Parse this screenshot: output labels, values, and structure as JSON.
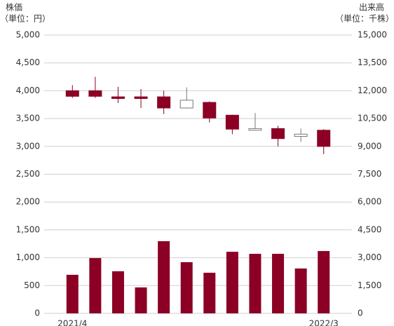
{
  "chart_data": {
    "type": "candlestick",
    "y_label": [
      "株価",
      "（単位：円）"
    ],
    "y2_label": [
      "出来高",
      "（単位：千株）"
    ],
    "categories": [
      "2021/4",
      null,
      null,
      null,
      null,
      null,
      null,
      null,
      null,
      null,
      null,
      "2022/3"
    ],
    "ohlc": {
      "color": "#8b0024",
      "up_color": "#ffffff",
      "open": [
        4000,
        4000,
        3890,
        3890,
        3890,
        3690,
        3790,
        3560,
        3290,
        3320,
        3180,
        3290
      ],
      "high": [
        4100,
        4250,
        4070,
        4030,
        4000,
        4060,
        3810,
        3570,
        3600,
        3370,
        3320,
        3310
      ],
      "low": [
        3870,
        3870,
        3780,
        3690,
        3580,
        3680,
        3430,
        3220,
        3290,
        3000,
        3080,
        2860
      ],
      "close": [
        3900,
        3900,
        3860,
        3860,
        3690,
        3830,
        3510,
        3310,
        3320,
        3140,
        3220,
        3000
      ]
    },
    "volume": {
      "axis": "y2",
      "color": "#8b0024",
      "values": [
        2080,
        2980,
        2270,
        1400,
        3890,
        2760,
        2190,
        3320,
        3210,
        3210,
        2420,
        3360
      ]
    },
    "ylim": [
      0,
      5000
    ],
    "yticks": [
      0,
      500,
      {
        "value": 1000,
        "label": "1,000"
      },
      {
        "value": 1500,
        "label": "1,500"
      },
      {
        "value": 2000,
        "label": "2,000"
      },
      {
        "value": 2500,
        "label": "2,500"
      },
      {
        "value": 3000,
        "label": "3,000"
      },
      {
        "value": 3500,
        "label": "3,500"
      },
      {
        "value": 4000,
        "label": "4,000"
      },
      {
        "value": 4500,
        "label": "4,500"
      },
      {
        "value": 5000,
        "label": "5,000"
      }
    ],
    "y2lim": [
      0,
      15000
    ],
    "y2ticks": [
      0,
      {
        "value": 1500,
        "label": "1,500"
      },
      {
        "value": 3000,
        "label": "3,000"
      },
      {
        "value": 4500,
        "label": "4,500"
      },
      {
        "value": 6000,
        "label": "6,000"
      },
      {
        "value": 7500,
        "label": "7,500"
      },
      {
        "value": 9000,
        "label": "9,000"
      },
      {
        "value": 10500,
        "label": "10,500"
      },
      {
        "value": 12000,
        "label": "12,000"
      },
      {
        "value": 13500,
        "label": "13,500"
      },
      {
        "value": 15000,
        "label": "15,000"
      }
    ],
    "grid": true
  }
}
